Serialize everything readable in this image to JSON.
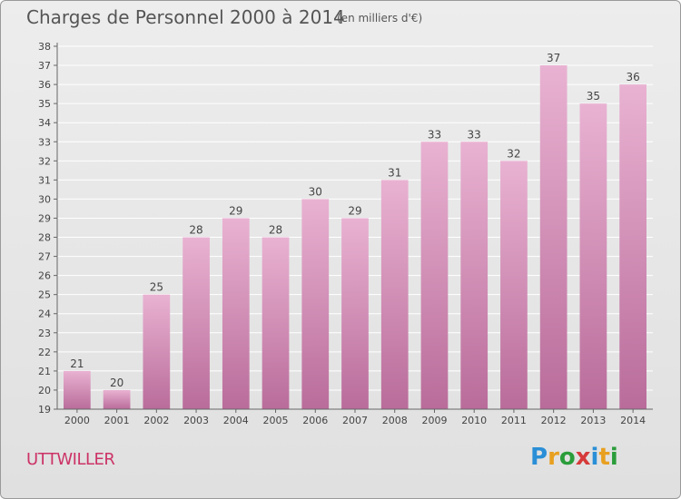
{
  "header": {
    "title": "Charges de Personnel 2000 à 2014",
    "subtitle": "(en milliers d'€)"
  },
  "footer": {
    "place": "UTTWILLER",
    "logo": {
      "letters": [
        "P",
        "r",
        "o",
        "x",
        "i",
        "t",
        "i"
      ],
      "colors": [
        "#2a8fd6",
        "#e8a020",
        "#2a9d3a",
        "#d63a3a",
        "#2a8fd6",
        "#e8a020",
        "#2a9d3a"
      ]
    }
  },
  "colors": {
    "bar_light": "#e9b2d2",
    "bar_dark": "#b96c9a",
    "axis_text": "#444444",
    "grid": "#ffffff"
  },
  "chart_data": {
    "type": "bar",
    "title": "Charges de Personnel 2000 à 2014",
    "subtitle": "(en milliers d'€)",
    "categories": [
      "2000",
      "2001",
      "2002",
      "2003",
      "2004",
      "2005",
      "2006",
      "2007",
      "2008",
      "2009",
      "2010",
      "2011",
      "2012",
      "2013",
      "2014"
    ],
    "values": [
      21,
      20,
      25,
      28,
      29,
      28,
      30,
      29,
      31,
      33,
      33,
      32,
      37,
      35,
      36
    ],
    "ylim": [
      19,
      38
    ],
    "yticks": [
      19,
      20,
      21,
      22,
      23,
      24,
      25,
      26,
      27,
      28,
      29,
      30,
      31,
      32,
      33,
      34,
      35,
      36,
      37,
      38
    ],
    "xlabel": "",
    "ylabel": "",
    "grid": true,
    "data_labels": true
  }
}
